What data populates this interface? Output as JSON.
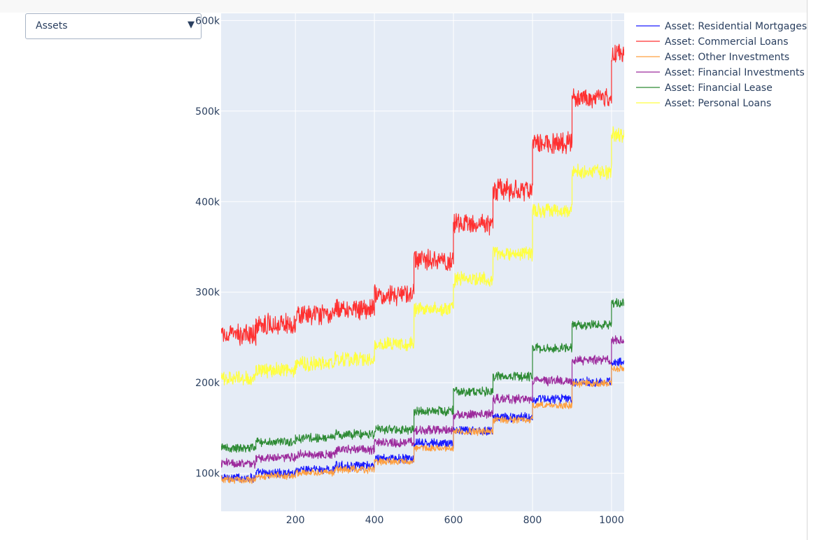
{
  "dropdown": {
    "selected": "Assets"
  },
  "chart_data": {
    "type": "line",
    "title": "",
    "xlabel": "",
    "ylabel": "",
    "xlim": [
      12,
      1032
    ],
    "ylim": [
      58000,
      608000
    ],
    "grid": true,
    "legend_position": "top-right",
    "x_ticks": [
      200,
      400,
      600,
      800,
      1000
    ],
    "x_tick_labels": [
      "200",
      "400",
      "600",
      "800",
      "1000"
    ],
    "y_ticks": [
      100000,
      200000,
      300000,
      400000,
      500000,
      600000
    ],
    "y_tick_labels": [
      "100k",
      "200k",
      "300k",
      "400k",
      "500k",
      "600k"
    ],
    "x_step": 1,
    "series": [
      {
        "name": "Asset: Residential Mortgages",
        "color": "#1a1aff",
        "segments": [
          [
            12,
            100,
            95000,
            4500
          ],
          [
            100,
            200,
            100000,
            4500
          ],
          [
            200,
            300,
            104000,
            4500
          ],
          [
            300,
            400,
            108000,
            4500
          ],
          [
            400,
            500,
            116000,
            4500
          ],
          [
            500,
            600,
            133000,
            4500
          ],
          [
            600,
            700,
            147000,
            4500
          ],
          [
            700,
            800,
            162000,
            4500
          ],
          [
            800,
            900,
            182000,
            4500
          ],
          [
            900,
            1000,
            201000,
            4500
          ],
          [
            1000,
            1032,
            223000,
            4500
          ]
        ]
      },
      {
        "name": "Asset: Commercial Loans",
        "color": "#ff3030",
        "segments": [
          [
            12,
            100,
            253000,
            10000
          ],
          [
            100,
            200,
            265000,
            10000
          ],
          [
            200,
            300,
            274000,
            10000
          ],
          [
            300,
            400,
            282000,
            10000
          ],
          [
            400,
            500,
            297000,
            10000
          ],
          [
            500,
            600,
            335000,
            10000
          ],
          [
            600,
            700,
            375000,
            10000
          ],
          [
            700,
            800,
            413000,
            10000
          ],
          [
            800,
            900,
            465000,
            10000
          ],
          [
            900,
            1000,
            515000,
            10000
          ],
          [
            1000,
            1032,
            563000,
            10000
          ]
        ]
      },
      {
        "name": "Asset: Other Investments",
        "color": "#ffa040",
        "segments": [
          [
            12,
            100,
            93000,
            3500
          ],
          [
            100,
            200,
            97000,
            3500
          ],
          [
            200,
            300,
            101000,
            3500
          ],
          [
            300,
            400,
            104000,
            3500
          ],
          [
            400,
            500,
            113000,
            3500
          ],
          [
            500,
            600,
            128000,
            3500
          ],
          [
            600,
            700,
            146000,
            3500
          ],
          [
            700,
            800,
            159000,
            3500
          ],
          [
            800,
            900,
            175000,
            3500
          ],
          [
            900,
            1000,
            199000,
            3500
          ],
          [
            1000,
            1032,
            216000,
            3500
          ]
        ]
      },
      {
        "name": "Asset: Financial Investments",
        "color": "#9c2a9c",
        "segments": [
          [
            12,
            100,
            111000,
            4500
          ],
          [
            100,
            200,
            117000,
            4500
          ],
          [
            200,
            300,
            121000,
            4500
          ],
          [
            300,
            400,
            126000,
            4500
          ],
          [
            400,
            500,
            134000,
            4500
          ],
          [
            500,
            600,
            148000,
            4500
          ],
          [
            600,
            700,
            165000,
            4500
          ],
          [
            700,
            800,
            182000,
            4500
          ],
          [
            800,
            900,
            202000,
            4500
          ],
          [
            900,
            1000,
            225000,
            4500
          ],
          [
            1000,
            1032,
            247000,
            4500
          ]
        ]
      },
      {
        "name": "Asset: Financial Lease",
        "color": "#2e8b35",
        "segments": [
          [
            12,
            100,
            128000,
            4500
          ],
          [
            100,
            200,
            135000,
            4500
          ],
          [
            200,
            300,
            139000,
            4500
          ],
          [
            300,
            400,
            143000,
            4500
          ],
          [
            400,
            500,
            148000,
            4500
          ],
          [
            500,
            600,
            169000,
            4500
          ],
          [
            600,
            700,
            190000,
            4500
          ],
          [
            700,
            800,
            207000,
            4500
          ],
          [
            800,
            900,
            238000,
            4500
          ],
          [
            900,
            1000,
            264000,
            4500
          ],
          [
            1000,
            1032,
            288000,
            4500
          ]
        ]
      },
      {
        "name": "Asset: Personal Loans",
        "color": "#ffff40",
        "segments": [
          [
            12,
            100,
            205000,
            7000
          ],
          [
            100,
            200,
            214000,
            7000
          ],
          [
            200,
            300,
            221000,
            7000
          ],
          [
            300,
            400,
            226000,
            7000
          ],
          [
            400,
            500,
            243000,
            7000
          ],
          [
            500,
            600,
            281000,
            7000
          ],
          [
            600,
            700,
            314000,
            7000
          ],
          [
            700,
            800,
            342000,
            7000
          ],
          [
            800,
            900,
            390000,
            7000
          ],
          [
            900,
            1000,
            433000,
            7000
          ],
          [
            1000,
            1032,
            474000,
            7000
          ]
        ]
      }
    ]
  }
}
